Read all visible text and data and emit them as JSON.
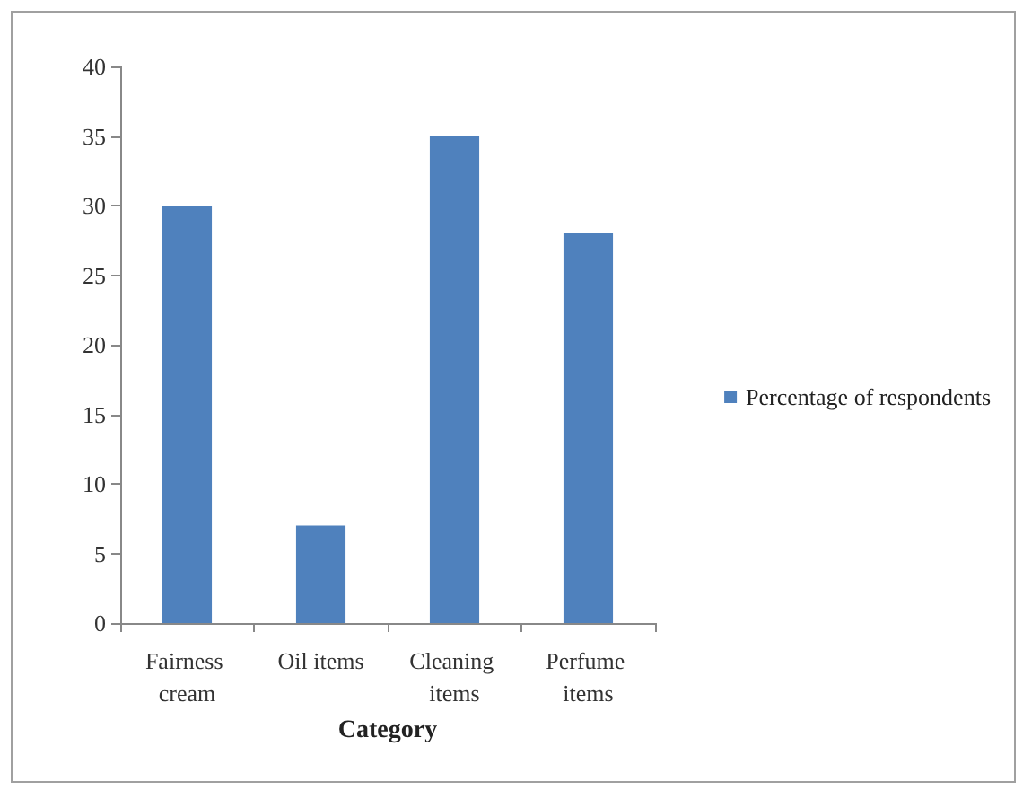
{
  "chart_data": {
    "type": "bar",
    "xlabel": "Category",
    "categories": [
      "Fairness cream",
      "Oil items",
      "Cleaning items",
      "Perfume items"
    ],
    "series": [
      {
        "name": "Percentage of respondents",
        "color": "#4f81bd",
        "values": [
          30,
          7,
          35,
          28
        ]
      }
    ],
    "ylim": [
      0,
      40
    ],
    "yticks": [
      0,
      5,
      10,
      15,
      20,
      25,
      30,
      35,
      40
    ],
    "grid": false,
    "legend": "right"
  }
}
